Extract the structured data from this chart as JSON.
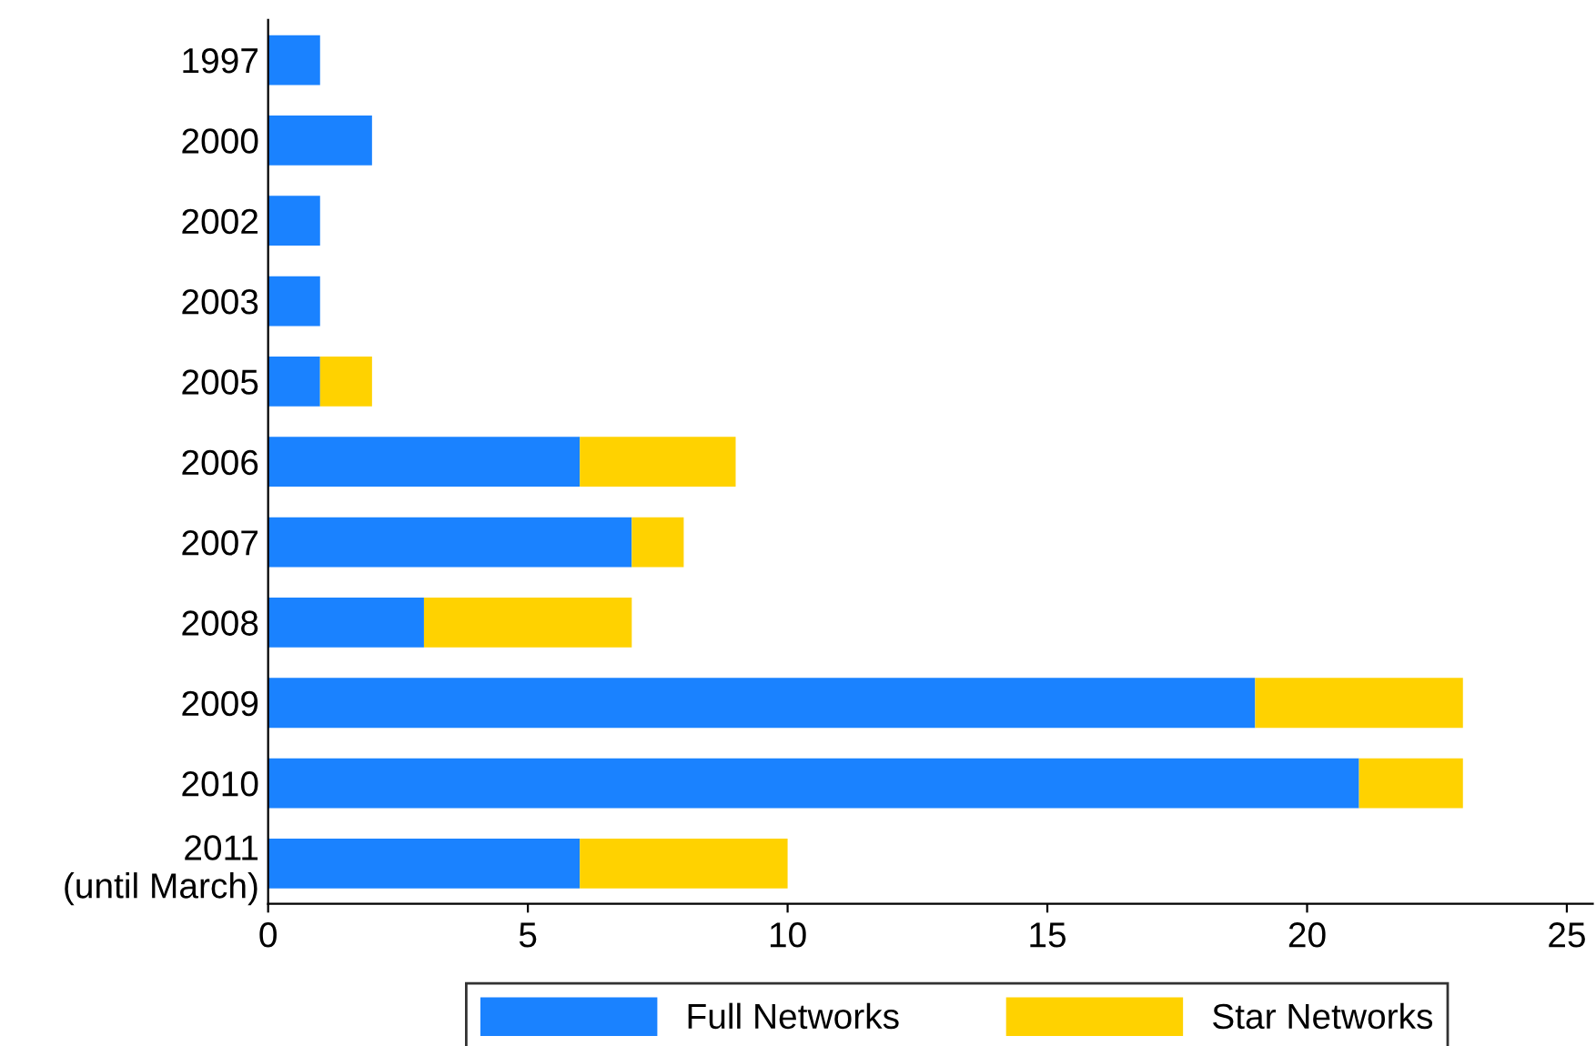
{
  "chart_data": {
    "type": "bar",
    "orientation": "horizontal",
    "stacked": true,
    "categories": [
      "1997",
      "2000",
      "2002",
      "2003",
      "2005",
      "2006",
      "2007",
      "2008",
      "2009",
      "2010",
      "2011\n(until March)"
    ],
    "series": [
      {
        "name": "Full Networks",
        "color": "#1a82ff",
        "values": [
          1,
          2,
          1,
          1,
          1,
          6,
          7,
          3,
          19,
          21,
          6
        ]
      },
      {
        "name": "Star Networks",
        "color": "#ffd200",
        "values": [
          0,
          0,
          0,
          0,
          1,
          3,
          1,
          4,
          4,
          2,
          4
        ]
      }
    ],
    "xlim": [
      0,
      25.5
    ],
    "xticks": [
      0,
      5,
      10,
      15,
      20,
      25
    ],
    "grid": false,
    "legend": "bottom"
  }
}
